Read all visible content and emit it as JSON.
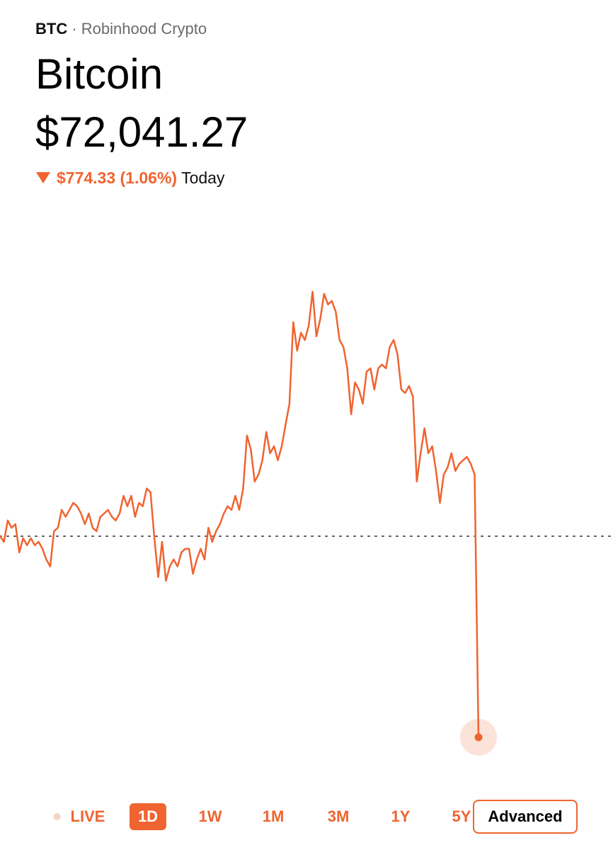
{
  "header": {
    "symbol": "BTC",
    "separator": "·",
    "source": "Robinhood Crypto",
    "name": "Bitcoin",
    "price": "$72,041.27",
    "change": "$774.33 (1.06%)",
    "period": "Today"
  },
  "chart_data": {
    "type": "line",
    "color": "#ef6430",
    "ylim": [
      71880,
      74062
    ],
    "previous_close": 72815.6,
    "values": [
      72816,
      72794,
      72876,
      72848,
      72862,
      72753,
      72808,
      72781,
      72808,
      72781,
      72794,
      72767,
      72726,
      72699,
      72835,
      72848,
      72917,
      72890,
      72917,
      72944,
      72931,
      72903,
      72862,
      72903,
      72848,
      72835,
      72890,
      72903,
      72917,
      72890,
      72876,
      72903,
      72971,
      72931,
      72971,
      72890,
      72944,
      72931,
      72999,
      72985,
      72808,
      72658,
      72794,
      72644,
      72699,
      72726,
      72699,
      72753,
      72767,
      72767,
      72671,
      72726,
      72767,
      72726,
      72848,
      72794,
      72835,
      72862,
      72903,
      72931,
      72917,
      72971,
      72917,
      72999,
      73203,
      73149,
      73026,
      73053,
      73108,
      73217,
      73135,
      73162,
      73108,
      73162,
      73244,
      73326,
      73640,
      73530,
      73599,
      73571,
      73626,
      73757,
      73585,
      73653,
      73749,
      73708,
      73721,
      73680,
      73571,
      73544,
      73462,
      73285,
      73408,
      73380,
      73326,
      73449,
      73462,
      73380,
      73462,
      73476,
      73462,
      73544,
      73571,
      73517,
      73380,
      73367,
      73394,
      73353,
      73026,
      73135,
      73231,
      73135,
      73162,
      73067,
      72944,
      73053,
      73081,
      73135,
      73067,
      73094,
      73108,
      73121,
      73094,
      73053,
      72041.27
    ]
  },
  "ranges": {
    "items": [
      "LIVE",
      "1D",
      "1W",
      "1M",
      "3M",
      "1Y",
      "5Y"
    ],
    "active": "1D",
    "advanced": "Advanced"
  }
}
